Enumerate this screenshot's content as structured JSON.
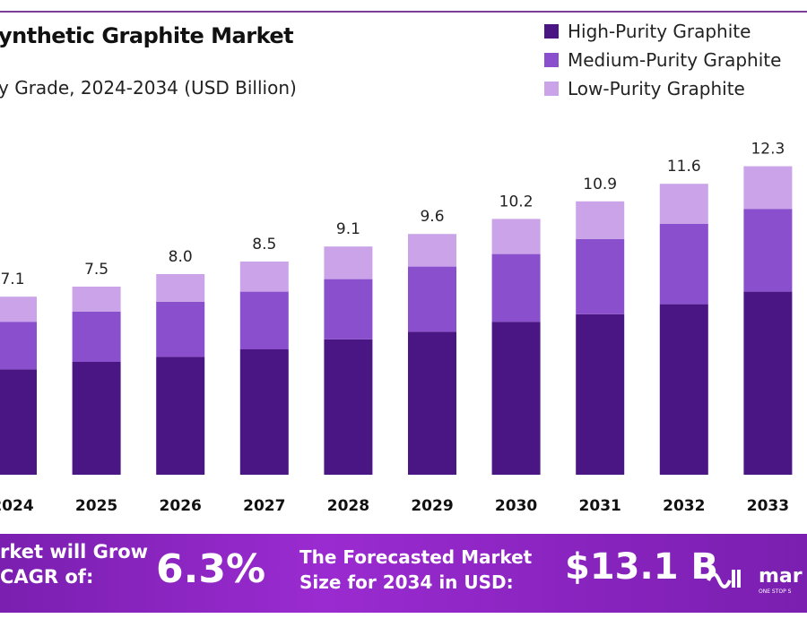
{
  "chart_data": {
    "type": "bar",
    "stacked": true,
    "title": "ynthetic Graphite Market",
    "subtitle": "y Grade, 2024-2034 (USD Billion)",
    "categories": [
      "2024",
      "2025",
      "2026",
      "2027",
      "2028",
      "2029",
      "2030",
      "2031",
      "2032",
      "2033"
    ],
    "series": [
      {
        "name": "High-Purity Graphite",
        "color": "#4a1684",
        "values": [
          4.2,
          4.5,
          4.7,
          5.0,
          5.4,
          5.7,
          6.1,
          6.4,
          6.8,
          7.3
        ]
      },
      {
        "name": "Medium-Purity Graphite",
        "color": "#8a4fcc",
        "values": [
          1.9,
          2.0,
          2.2,
          2.3,
          2.4,
          2.6,
          2.7,
          3.0,
          3.2,
          3.3
        ]
      },
      {
        "name": "Low-Purity Graphite",
        "color": "#caa3e8",
        "values": [
          1.0,
          1.0,
          1.1,
          1.2,
          1.3,
          1.3,
          1.4,
          1.5,
          1.6,
          1.7
        ]
      }
    ],
    "totals": [
      "7.1",
      "7.5",
      "8.0",
      "8.5",
      "9.1",
      "9.6",
      "10.2",
      "10.9",
      "11.6",
      "12.3"
    ],
    "legend_position": "top-right",
    "grid": false,
    "ylim": [
      0,
      13
    ]
  },
  "banner": {
    "cagr_text_1": "rket will Grow",
    "cagr_text_2": "CAGR of:",
    "cagr_value": "6.3%",
    "forecast_text_1": "The Forecasted Market",
    "forecast_text_2": "Size for 2034 in USD:",
    "forecast_value": "$13.1 B",
    "logo_text": "mar",
    "logo_tagline": "ONE STOP S"
  }
}
